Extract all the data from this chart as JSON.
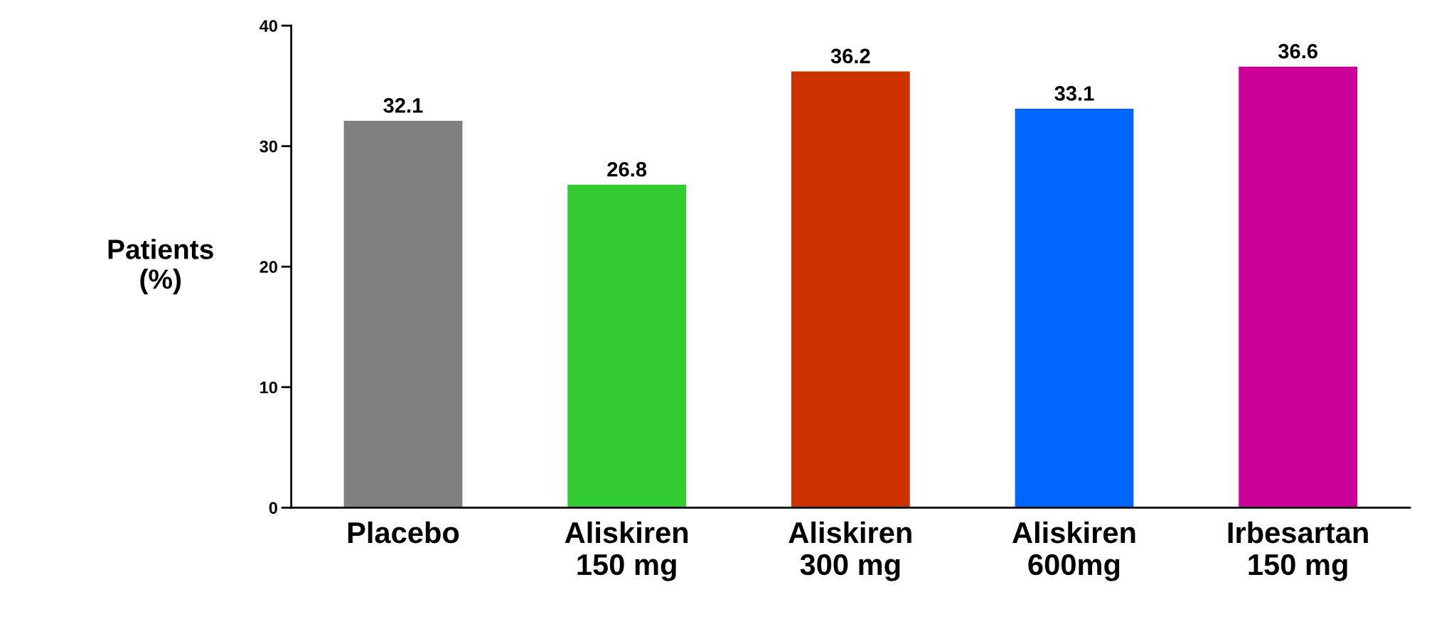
{
  "chart_data": {
    "type": "bar",
    "ylabel": "Patients\n(%)",
    "categories": [
      "Placebo",
      "Aliskiren\n150 mg",
      "Aliskiren\n300 mg",
      "Aliskiren\n600mg",
      "Irbesartan\n150 mg"
    ],
    "values": [
      32.1,
      26.8,
      36.2,
      33.1,
      36.6
    ],
    "colors": [
      "#808080",
      "#33cc33",
      "#cc3300",
      "#0066ff",
      "#cc0099"
    ],
    "ylim": [
      0,
      40
    ],
    "yticks": [
      0,
      10,
      20,
      30,
      40
    ],
    "data_labels": true,
    "grid": false
  }
}
